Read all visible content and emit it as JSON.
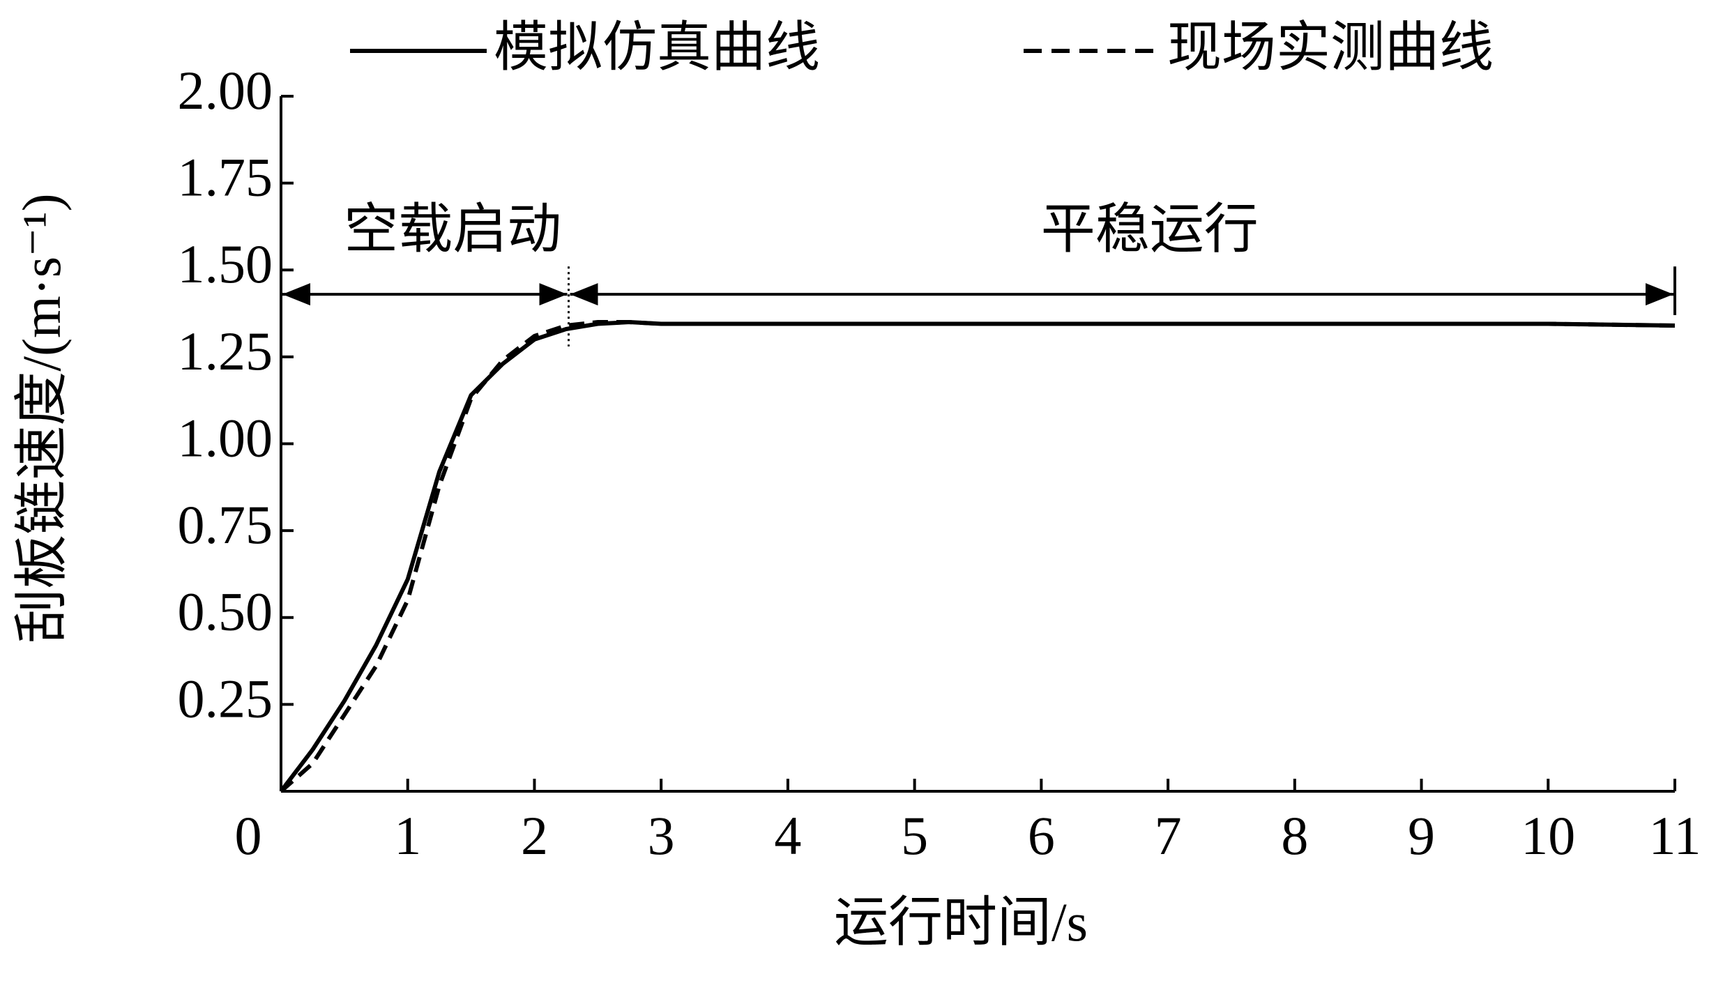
{
  "chart_data": {
    "type": "line",
    "legend": "top",
    "x_label": "运行时间/s",
    "y_label": "刮板链速度/(m·s⁻¹)",
    "xlim": [
      0,
      11
    ],
    "ylim": [
      0,
      2
    ],
    "xticks": [
      0,
      1,
      2,
      3,
      4,
      5,
      6,
      7,
      8,
      9,
      10,
      11
    ],
    "yticks": [
      0.25,
      {
        "value": 0.5,
        "label": "0.50"
      },
      0.75,
      {
        "value": 1,
        "label": "1.00"
      },
      1.25,
      {
        "value": 1.5,
        "label": "1.50"
      },
      1.75,
      {
        "value": 2,
        "label": "2.00"
      }
    ],
    "x": [
      0,
      0.25,
      0.5,
      0.75,
      1,
      1.25,
      1.5,
      1.75,
      2,
      2.25,
      2.5,
      2.75,
      3,
      4,
      5,
      6,
      7,
      8,
      9,
      10,
      11
    ],
    "series": [
      {
        "name": "模拟仿真曲线",
        "color": "#000000",
        "dash": false,
        "values": [
          0,
          0.12,
          0.26,
          0.42,
          0.61,
          0.92,
          1.14,
          1.23,
          1.3,
          1.33,
          1.345,
          1.35,
          1.345,
          1.345,
          1.345,
          1.345,
          1.345,
          1.345,
          1.345,
          1.345,
          1.34
        ]
      },
      {
        "name": "现场实测曲线",
        "color": "#000000",
        "dash": true,
        "values": [
          0,
          0.08,
          0.22,
          0.36,
          0.55,
          0.88,
          1.13,
          1.24,
          1.31,
          1.34,
          1.35,
          1.35,
          1.345,
          1.345,
          1.345,
          1.345,
          1.345,
          1.345,
          1.345,
          1.345,
          1.34
        ]
      }
    ],
    "phases": [
      {
        "label": "空载启动",
        "start": 0,
        "end": 2.27
      },
      {
        "label": "平稳运行",
        "start": 2.27,
        "end": 11
      }
    ],
    "phase_arrow_y": 1.43
  }
}
